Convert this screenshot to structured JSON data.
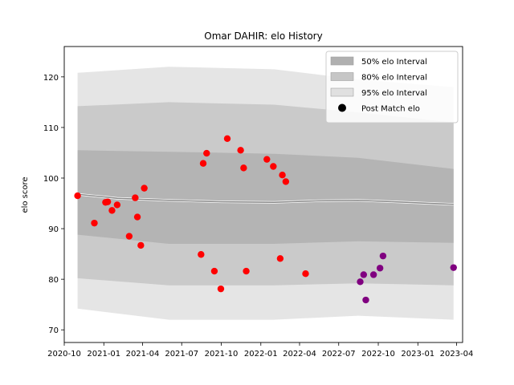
{
  "chart_data": {
    "type": "scatter",
    "title": "Omar DAHIR: elo History",
    "xlabel": "",
    "ylabel": "elo score",
    "xlim": [
      "2020-10-01",
      "2023-04-15"
    ],
    "ylim": [
      67.5,
      126
    ],
    "x_ticks": [
      "2020-10",
      "2021-01",
      "2021-04",
      "2021-07",
      "2021-10",
      "2022-01",
      "2022-04",
      "2022-07",
      "2022-10",
      "2023-01",
      "2023-04"
    ],
    "y_ticks": [
      70,
      80,
      90,
      100,
      110,
      120
    ],
    "grid": false,
    "legend_position": "top-right",
    "legend": [
      {
        "label": "50% elo Interval",
        "kind": "band",
        "color": "#b0b0b0"
      },
      {
        "label": "80% elo Interval",
        "kind": "band",
        "color": "#c6c6c6"
      },
      {
        "label": "95% elo Interval",
        "kind": "band",
        "color": "#e0e0e0"
      },
      {
        "label": "Post Match elo",
        "kind": "marker",
        "color": "#000000"
      }
    ],
    "mean_line": [
      {
        "date": "2020-11-01",
        "value": 96.8
      },
      {
        "date": "2021-02-01",
        "value": 96.0
      },
      {
        "date": "2021-06-01",
        "value": 95.6
      },
      {
        "date": "2021-10-01",
        "value": 95.3
      },
      {
        "date": "2022-02-01",
        "value": 95.2
      },
      {
        "date": "2022-05-15",
        "value": 95.5
      },
      {
        "date": "2022-08-15",
        "value": 95.6
      },
      {
        "date": "2023-03-25",
        "value": 94.8
      }
    ],
    "bands": [
      {
        "name": "95% elo Interval",
        "color": "#e0e0e0",
        "points": [
          {
            "date": "2020-11-01",
            "low": 74.2,
            "high": 120.8
          },
          {
            "date": "2021-06-01",
            "low": 72.0,
            "high": 122.0
          },
          {
            "date": "2022-02-01",
            "low": 72.0,
            "high": 121.5
          },
          {
            "date": "2022-08-15",
            "low": 72.8,
            "high": 119.5
          },
          {
            "date": "2023-03-25",
            "low": 72.0,
            "high": 118.0
          }
        ]
      },
      {
        "name": "80% elo Interval",
        "color": "#c6c6c6",
        "points": [
          {
            "date": "2020-11-01",
            "low": 80.2,
            "high": 114.2
          },
          {
            "date": "2021-06-01",
            "low": 78.8,
            "high": 115.0
          },
          {
            "date": "2022-02-01",
            "low": 78.8,
            "high": 114.5
          },
          {
            "date": "2022-08-15",
            "low": 79.2,
            "high": 113.0
          },
          {
            "date": "2023-03-25",
            "low": 78.8,
            "high": 111.0
          }
        ]
      },
      {
        "name": "50% elo Interval",
        "color": "#b0b0b0",
        "points": [
          {
            "date": "2020-11-01",
            "low": 88.8,
            "high": 105.5
          },
          {
            "date": "2021-06-01",
            "low": 87.0,
            "high": 105.2
          },
          {
            "date": "2022-02-01",
            "low": 87.0,
            "high": 104.8
          },
          {
            "date": "2022-08-15",
            "low": 87.5,
            "high": 104.0
          },
          {
            "date": "2023-03-25",
            "low": 87.2,
            "high": 101.8
          }
        ]
      }
    ],
    "series": [
      {
        "name": "Post Match elo",
        "color": "#ff0000",
        "points": [
          {
            "date": "2020-11-01",
            "value": 96.5
          },
          {
            "date": "2020-12-10",
            "value": 91.1
          },
          {
            "date": "2021-01-05",
            "value": 95.2
          },
          {
            "date": "2021-01-10",
            "value": 95.3
          },
          {
            "date": "2021-01-20",
            "value": 93.6
          },
          {
            "date": "2021-02-01",
            "value": 94.7
          },
          {
            "date": "2021-03-01",
            "value": 88.5
          },
          {
            "date": "2021-03-15",
            "value": 96.1
          },
          {
            "date": "2021-03-20",
            "value": 92.3
          },
          {
            "date": "2021-03-28",
            "value": 86.7
          },
          {
            "date": "2021-04-05",
            "value": 98.0
          },
          {
            "date": "2021-08-15",
            "value": 84.9
          },
          {
            "date": "2021-08-20",
            "value": 102.9
          },
          {
            "date": "2021-08-28",
            "value": 104.9
          },
          {
            "date": "2021-09-15",
            "value": 81.6
          },
          {
            "date": "2021-09-30",
            "value": 78.1
          },
          {
            "date": "2021-10-15",
            "value": 107.8
          },
          {
            "date": "2021-11-15",
            "value": 105.5
          },
          {
            "date": "2021-11-22",
            "value": 102.0
          },
          {
            "date": "2021-11-28",
            "value": 81.6
          },
          {
            "date": "2022-01-15",
            "value": 103.7
          },
          {
            "date": "2022-01-30",
            "value": 102.3
          },
          {
            "date": "2022-02-15",
            "value": 84.1
          },
          {
            "date": "2022-02-20",
            "value": 100.6
          },
          {
            "date": "2022-02-28",
            "value": 99.3
          },
          {
            "date": "2022-04-15",
            "value": 81.1
          }
        ]
      },
      {
        "name": "",
        "color": "#800080",
        "points": [
          {
            "date": "2022-08-20",
            "value": 79.5
          },
          {
            "date": "2022-08-28",
            "value": 80.9
          },
          {
            "date": "2022-09-02",
            "value": 75.9
          },
          {
            "date": "2022-09-20",
            "value": 80.9
          },
          {
            "date": "2022-10-05",
            "value": 82.2
          },
          {
            "date": "2022-10-12",
            "value": 84.6
          },
          {
            "date": "2023-03-25",
            "value": 82.3
          }
        ]
      }
    ]
  }
}
